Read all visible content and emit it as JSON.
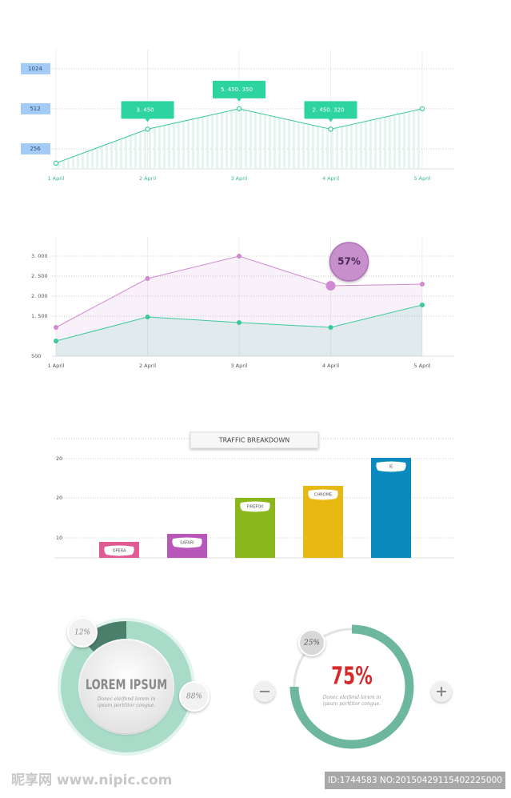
{
  "chart_data": [
    {
      "type": "line",
      "yscale": "log",
      "color": "#3cc99a",
      "categories": [
        "1 April",
        "2 April",
        "3 April",
        "4 April",
        "5 April"
      ],
      "values": [
        200,
        360,
        512,
        360,
        512
      ],
      "ylim": [
        181,
        1425
      ],
      "yticks": [
        256,
        512,
        1024
      ],
      "grid": true,
      "annotations": [
        {
          "label": "3. 450",
          "x": "2 April"
        },
        {
          "label": "5. 450. 350",
          "x": "3 April"
        },
        {
          "label": "2. 450. 320",
          "x": "4 April"
        }
      ]
    },
    {
      "type": "area",
      "categories": [
        "1 April",
        "2 April",
        "3 April",
        "4 April",
        "5 April"
      ],
      "series": [
        {
          "color": "#d08ad0",
          "values": [
            1220,
            2440,
            3000,
            2260,
            2300
          ]
        },
        {
          "color": "#3cc99a",
          "values": [
            880,
            1480,
            1340,
            1220,
            1780
          ]
        }
      ],
      "ylim": [
        500,
        3500
      ],
      "yticks": [
        {
          "value": 500,
          "label": "500"
        },
        {
          "value": 1500,
          "label": "1. 500"
        },
        {
          "value": 2000,
          "label": "2. 000"
        },
        {
          "value": 2500,
          "label": "2. 500"
        },
        {
          "value": 3000,
          "label": "3. 000"
        }
      ],
      "grid": true,
      "annotations": [
        {
          "label": "57%",
          "x": "4 April"
        }
      ]
    },
    {
      "type": "bar",
      "title": "TRAFFIC BREAKDOWN",
      "categories": [
        "OPERA",
        "SAFARI",
        "FIREFOX",
        "CHROME",
        "IE"
      ],
      "values": [
        9,
        11,
        20,
        23,
        30
      ],
      "colors": [
        "#e05a94",
        "#b857b9",
        "#8ab81c",
        "#e8b912",
        "#0a8abf"
      ],
      "ylim": [
        5,
        35
      ],
      "yticks": [
        10,
        20
      ],
      "axis_note": "20",
      "grid": true
    },
    {
      "type": "donut",
      "title": "LOREM IPSUM",
      "subtitle": "Donec eleifend lorem in ipsum porttitor congue.",
      "values": [
        12,
        88
      ],
      "value_labels": [
        "12%",
        "88%"
      ],
      "colors": [
        "#4a7f6b",
        "#a8dcc8"
      ]
    },
    {
      "type": "donut",
      "subtitle": "Donec eleifend lorem in ipsum porttitor congue.",
      "values": [
        75,
        25
      ],
      "value_labels": [
        "75%",
        "25%"
      ],
      "colors": [
        "#6cb79d",
        "#e3e3e3"
      ]
    }
  ],
  "watermark": {
    "site": "昵享网 www.nipic.com",
    "id": "ID:1744583 NO:20150429115402225000"
  }
}
